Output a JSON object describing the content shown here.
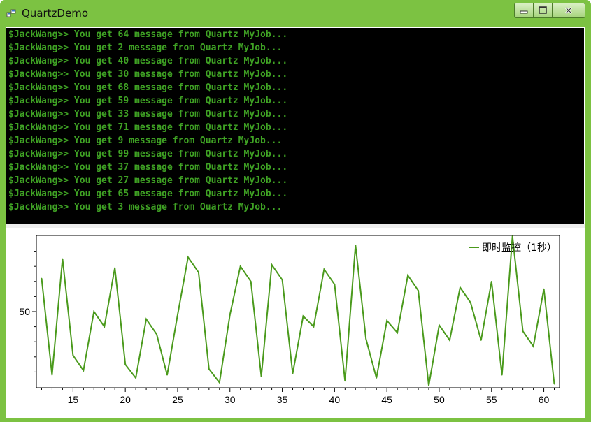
{
  "window": {
    "title": "QuartzDemo",
    "icons": {
      "app": "app-form-icon",
      "minimize": "minimize-icon",
      "maximize": "maximize-icon",
      "close": "close-icon"
    }
  },
  "console": {
    "background": "#000000",
    "text_color": "#3fa224",
    "lines": [
      "$JackWang>> You get 64 message from Quartz MyJob...",
      "$JackWang>> You get 2 message from Quartz MyJob...",
      "$JackWang>> You get 40 message from Quartz MyJob...",
      "$JackWang>> You get 30 message from Quartz MyJob...",
      "$JackWang>> You get 68 message from Quartz MyJob...",
      "$JackWang>> You get 59 message from Quartz MyJob...",
      "$JackWang>> You get 33 message from Quartz MyJob...",
      "$JackWang>> You get 71 message from Quartz MyJob...",
      "$JackWang>> You get 9 message from Quartz MyJob...",
      "$JackWang>> You get 99 message from Quartz MyJob...",
      "$JackWang>> You get 37 message from Quartz MyJob...",
      "$JackWang>> You get 27 message from Quartz MyJob...",
      "$JackWang>> You get 65 message from Quartz MyJob...",
      "$JackWang>> You get 3 message from Quartz MyJob..."
    ]
  },
  "chart_data": {
    "type": "line",
    "title": "",
    "xlabel": "",
    "ylabel": "",
    "xlim": [
      11.5,
      61.5
    ],
    "ylim": [
      0,
      100
    ],
    "xticks": [
      15,
      20,
      25,
      30,
      35,
      40,
      45,
      50,
      55,
      60
    ],
    "yticks": [
      50
    ],
    "grid": false,
    "legend": "top-right",
    "color": "#4a9a1c",
    "series": [
      {
        "name": "即时监控（1秒）",
        "x": [
          12,
          13,
          14,
          15,
          16,
          17,
          18,
          19,
          20,
          21,
          22,
          23,
          24,
          25,
          26,
          27,
          28,
          29,
          30,
          31,
          32,
          33,
          34,
          35,
          36,
          37,
          38,
          39,
          40,
          41,
          42,
          43,
          44,
          45,
          46,
          47,
          48,
          49,
          50,
          51,
          52,
          53,
          54,
          55,
          56,
          57,
          58,
          59,
          60,
          61
        ],
        "values": [
          72,
          8,
          85,
          21,
          11,
          50,
          40,
          79,
          15,
          6,
          45,
          35,
          8,
          48,
          86,
          76,
          12,
          3,
          48,
          80,
          70,
          7,
          81,
          71,
          9,
          47,
          40,
          78,
          68,
          4,
          94,
          32,
          6,
          44,
          36,
          74,
          64,
          1,
          41,
          31,
          66,
          56,
          31,
          70,
          8,
          100,
          37,
          27,
          65,
          2
        ]
      }
    ]
  }
}
